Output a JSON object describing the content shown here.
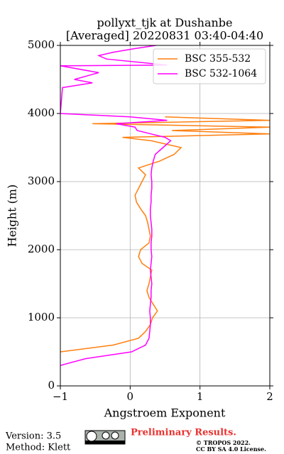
{
  "chart_data": {
    "type": "line",
    "title": "pollyxt_tjk at Dushanbe",
    "subtitle": "[Averaged] 20220831 03:40-04:40",
    "x_label": "Angstroem Exponent",
    "y_label": "Height (m)",
    "y": [
      300,
      400,
      500,
      600,
      700,
      800,
      900,
      1000,
      1100,
      1200,
      1300,
      1400,
      1500,
      1600,
      1700,
      1800,
      1900,
      2000,
      2100,
      2200,
      2300,
      2400,
      2500,
      2600,
      2700,
      2800,
      2900,
      3000,
      3100,
      3200,
      3300,
      3400,
      3500,
      3600,
      3650,
      3700,
      3750,
      3800,
      3850,
      3900,
      3950,
      4000,
      4380,
      4400,
      4450,
      4500,
      4600,
      4700,
      4710,
      4800,
      4850,
      4900,
      4950,
      5000
    ],
    "series": [
      {
        "name": "BSC 355-532",
        "color": "#ff7f0e",
        "values": [
          null,
          null,
          -1,
          -0.24,
          0.12,
          0.22,
          0.29,
          0.32,
          0.39,
          0.33,
          0.27,
          0.24,
          0.27,
          0.29,
          0.31,
          0.17,
          0.12,
          0.15,
          0.27,
          0.29,
          0.27,
          0.25,
          0.22,
          0.15,
          0.09,
          0.07,
          0.12,
          0.17,
          0.22,
          0.12,
          0.42,
          0.63,
          0.73,
          0.3,
          -0.11,
          2,
          0.6,
          2,
          -0.54,
          2,
          0.5,
          null,
          null,
          null,
          null,
          null,
          null,
          null,
          null,
          null,
          null,
          null,
          null,
          null
        ]
      },
      {
        "name": "BSC 532-1064",
        "color": "#ff00ff",
        "values": [
          -1,
          -0.64,
          0.02,
          0.22,
          0.27,
          0.28,
          0.29,
          0.29,
          0.28,
          0.29,
          0.3,
          0.3,
          0.31,
          0.3,
          0.29,
          0.3,
          0.31,
          0.3,
          0.3,
          0.31,
          0.31,
          0.3,
          0.29,
          0.29,
          0.3,
          0.3,
          0.31,
          0.31,
          0.3,
          0.31,
          0.33,
          0.36,
          0.47,
          0.58,
          0.5,
          0.3,
          0.1,
          0.07,
          -0.2,
          0.53,
          0,
          -1,
          -0.97,
          -0.85,
          -0.54,
          -0.8,
          -0.45,
          -1,
          0.53,
          -0.34,
          -0.45,
          -0.24,
          0.05,
          0.37
        ]
      }
    ],
    "xlim": [
      -1,
      2
    ],
    "xticks": [
      {
        "value": -1,
        "label": "−1"
      },
      0,
      1,
      2
    ],
    "ylim": [
      0,
      5000
    ],
    "yticks": [
      0,
      1000,
      2000,
      3000,
      4000,
      5000
    ],
    "grid": true,
    "legend": "upper right",
    "footer": {
      "version": "Version: 3.5",
      "method": "Method: Klett",
      "preliminary": "Preliminary Results.",
      "copyright": "© TROPOS 2022.",
      "license": "CC BY SA 4.0 License."
    }
  }
}
